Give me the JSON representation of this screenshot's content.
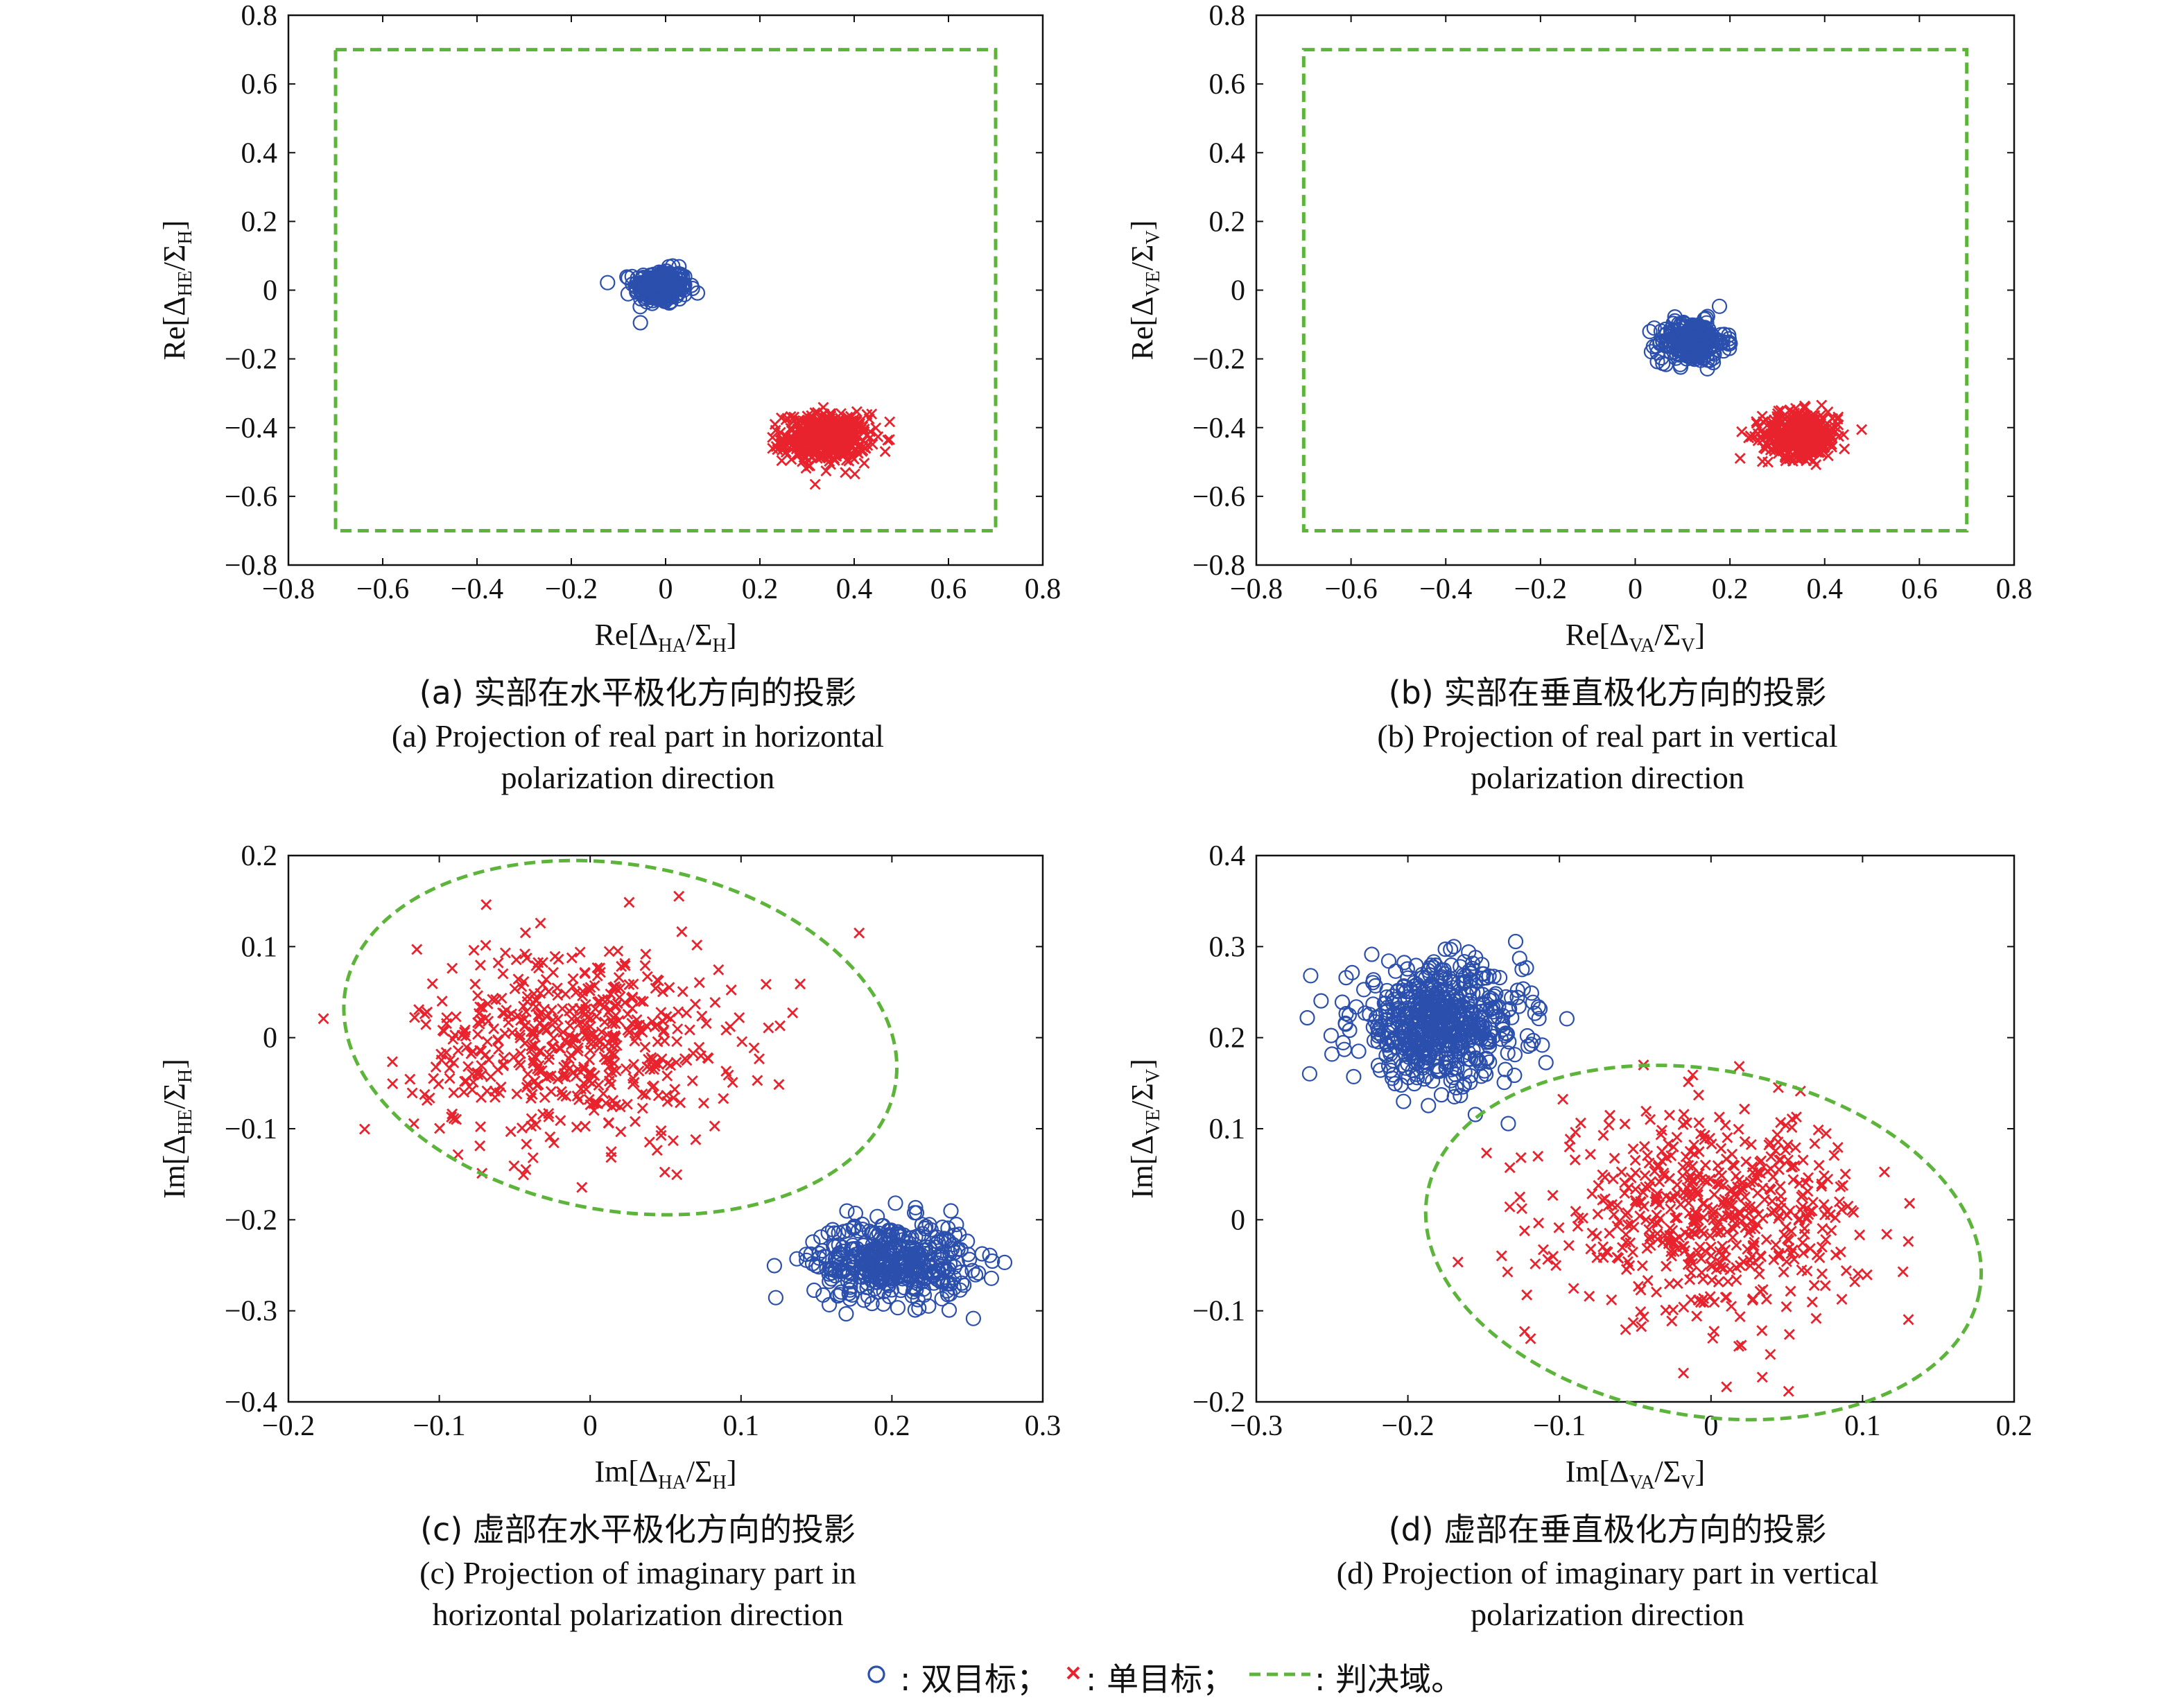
{
  "colors": {
    "dual_target": "#2b4fad",
    "single_target": "#e8232d",
    "decision_region": "#5cb53a",
    "axis": "#111111"
  },
  "legend": {
    "dual_label": ": 双目标；",
    "single_label": ": 单目标；",
    "region_label": ": 判决域。"
  },
  "chart_data": [
    {
      "id": "a",
      "type": "scatter",
      "xlabel": {
        "prefix": "Re[Δ",
        "sub1": "HA",
        "mid": "/Σ",
        "sub2": "H",
        "suffix": "]"
      },
      "ylabel": {
        "prefix": "Re[Δ",
        "sub1": "HE",
        "mid": "/Σ",
        "sub2": "H",
        "suffix": "]"
      },
      "xlim": [
        -0.8,
        0.8
      ],
      "ylim": [
        -0.8,
        0.8
      ],
      "xticks": [
        -0.8,
        -0.6,
        -0.4,
        -0.2,
        0,
        0.2,
        0.4,
        0.6,
        0.8
      ],
      "yticks": [
        -0.8,
        -0.6,
        -0.4,
        -0.2,
        0,
        0.2,
        0.4,
        0.6,
        0.8
      ],
      "grid": false,
      "caption_cn": "(a) 实部在水平极化方向的投影",
      "caption_en": [
        "(a) Projection of real part in horizontal",
        "polarization direction"
      ],
      "decision_region": {
        "shape": "rectangle",
        "x": [
          -0.7,
          0.7
        ],
        "y": [
          -0.7,
          0.7
        ]
      },
      "clusters": [
        {
          "series": "双目标",
          "marker": "circle",
          "center": [
            -0.01,
            0.01
          ],
          "spread": [
            0.028,
            0.025
          ],
          "count": 260
        },
        {
          "series": "单目标",
          "marker": "x",
          "center": [
            0.34,
            -0.43
          ],
          "spread": [
            0.045,
            0.035
          ],
          "count": 450
        }
      ]
    },
    {
      "id": "b",
      "type": "scatter",
      "xlabel": {
        "prefix": "Re[Δ",
        "sub1": "VA",
        "mid": "/Σ",
        "sub2": "V",
        "suffix": "]"
      },
      "ylabel": {
        "prefix": "Re[Δ",
        "sub1": "VE",
        "mid": "/Σ",
        "sub2": "V",
        "suffix": "]"
      },
      "xlim": [
        -0.8,
        0.8
      ],
      "ylim": [
        -0.8,
        0.8
      ],
      "xticks": [
        -0.8,
        -0.6,
        -0.4,
        -0.2,
        0,
        0.2,
        0.4,
        0.6,
        0.8
      ],
      "yticks": [
        -0.8,
        -0.6,
        -0.4,
        -0.2,
        0,
        0.2,
        0.4,
        0.6,
        0.8
      ],
      "grid": false,
      "caption_cn": "(b) 实部在垂直极化方向的投影",
      "caption_en": [
        "(b) Projection of real part in vertical",
        "polarization direction"
      ],
      "decision_region": {
        "shape": "rectangle",
        "x": [
          -0.7,
          0.7
        ],
        "y": [
          -0.7,
          0.7
        ]
      },
      "clusters": [
        {
          "series": "双目标",
          "marker": "circle",
          "center": [
            0.12,
            -0.15
          ],
          "spread": [
            0.035,
            0.03
          ],
          "count": 260
        },
        {
          "series": "单目标",
          "marker": "x",
          "center": [
            0.35,
            -0.42
          ],
          "spread": [
            0.04,
            0.033
          ],
          "count": 450
        }
      ]
    },
    {
      "id": "c",
      "type": "scatter",
      "xlabel": {
        "prefix": "Im[Δ",
        "sub1": "HA",
        "mid": "/Σ",
        "sub2": "H",
        "suffix": "]"
      },
      "ylabel": {
        "prefix": "Im[Δ",
        "sub1": "HE",
        "mid": "/Σ",
        "sub2": "H",
        "suffix": "]"
      },
      "xlim": [
        -0.2,
        0.3
      ],
      "ylim": [
        -0.4,
        0.2
      ],
      "xticks": [
        -0.2,
        -0.1,
        0,
        0.1,
        0.2,
        0.3
      ],
      "yticks": [
        -0.4,
        -0.3,
        -0.2,
        -0.1,
        0,
        0.1,
        0.2
      ],
      "grid": false,
      "caption_cn": "(c) 虚部在水平极化方向的投影",
      "caption_en": [
        "(c) Projection of imaginary part in",
        "horizontal polarization direction"
      ],
      "decision_region": {
        "shape": "ellipse",
        "center": [
          0.02,
          0.0
        ],
        "radii": [
          0.185,
          0.19
        ],
        "angle_deg": -10
      },
      "clusters": [
        {
          "series": "双目标",
          "marker": "circle",
          "center": [
            0.2,
            -0.245
          ],
          "spread": [
            0.026,
            0.022
          ],
          "count": 420
        },
        {
          "series": "单目标",
          "marker": "x",
          "center": [
            -0.01,
            -0.005
          ],
          "spread": [
            0.052,
            0.055
          ],
          "count": 520
        }
      ]
    },
    {
      "id": "d",
      "type": "scatter",
      "xlabel": {
        "prefix": "Im[Δ",
        "sub1": "VA",
        "mid": "/Σ",
        "sub2": "V",
        "suffix": "]"
      },
      "ylabel": {
        "prefix": "Im[Δ",
        "sub1": "VE",
        "mid": "/Σ",
        "sub2": "V",
        "suffix": "]"
      },
      "xlim": [
        -0.3,
        0.2
      ],
      "ylim": [
        -0.2,
        0.4
      ],
      "xticks": [
        -0.3,
        -0.2,
        -0.1,
        0,
        0.1,
        0.2
      ],
      "yticks": [
        -0.2,
        -0.1,
        0,
        0.1,
        0.2,
        0.3,
        0.4
      ],
      "grid": false,
      "caption_cn": "(d) 虚部在垂直极化方向的投影",
      "caption_en": [
        "(d) Projection of imaginary part in vertical",
        "polarization direction"
      ],
      "decision_region": {
        "shape": "ellipse",
        "center": [
          -0.005,
          -0.025
        ],
        "radii": [
          0.185,
          0.19
        ],
        "angle_deg": -10
      },
      "clusters": [
        {
          "series": "双目标",
          "marker": "circle",
          "center": [
            -0.18,
            0.215
          ],
          "spread": [
            0.028,
            0.032
          ],
          "count": 600
        },
        {
          "series": "单目标",
          "marker": "x",
          "center": [
            0.0,
            0.005
          ],
          "spread": [
            0.05,
            0.055
          ],
          "count": 550
        }
      ]
    }
  ]
}
